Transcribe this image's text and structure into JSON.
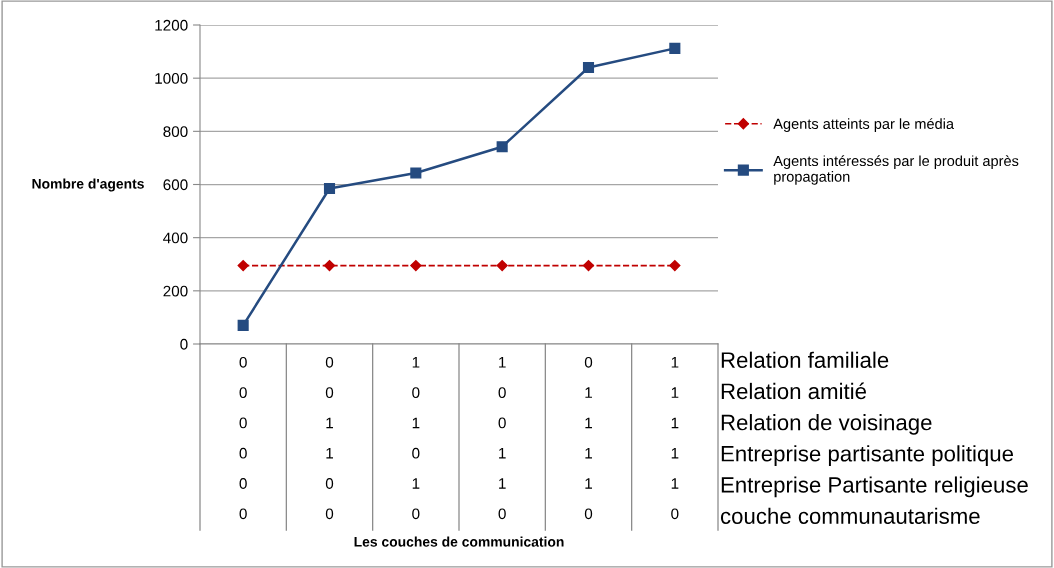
{
  "chart_data": {
    "type": "line",
    "ylabel": "Nombre d'agents",
    "categories": [
      "0\n0\n0\n0\n0\n0",
      "0\n0\n1\n1\n0\n0",
      "1\n0\n1\n0\n1\n0",
      "1\n0\n0\n1\n1\n0",
      "0\n1\n1\n1\n1\n0",
      "1\n1\n1\n1\n1\n0"
    ],
    "series": [
      {
        "name": "Agents atteints par le média",
        "color": "#c00000",
        "marker": "diamond",
        "line_style": "dashed",
        "values": [
          295,
          295,
          295,
          295,
          295,
          295
        ]
      },
      {
        "name": "Agents intéressés par le produit après\npropagation",
        "color": "#254b80",
        "marker": "square",
        "line_style": "solid",
        "values": [
          70,
          585,
          643,
          742,
          1040,
          1112
        ]
      }
    ],
    "ylim": [
      0,
      1200
    ],
    "yticks": [
      0,
      200,
      400,
      600,
      800,
      1000,
      1200
    ],
    "grid": "y",
    "legend": "right",
    "annotations": [
      "Relation familiale",
      "Relation amitié",
      "Relation de voisinage",
      "Entreprise partisante politique",
      "Entreprise Partisante religieuse",
      "couche communautarisme",
      "Les couches de communication"
    ]
  }
}
